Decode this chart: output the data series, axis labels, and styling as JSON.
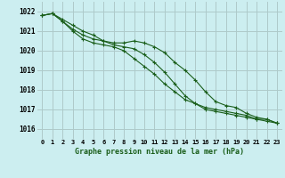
{
  "title": "Graphe pression niveau de la mer (hPa)",
  "background_color": "#cceef0",
  "grid_color": "#aacccc",
  "grid_color_major": "#cc9999",
  "line_color": "#1a5e1a",
  "x_labels": [
    "0",
    "1",
    "2",
    "3",
    "4",
    "5",
    "6",
    "7",
    "8",
    "9",
    "10",
    "11",
    "12",
    "13",
    "14",
    "15",
    "16",
    "17",
    "18",
    "19",
    "20",
    "21",
    "22",
    "23"
  ],
  "ylim": [
    1015.5,
    1022.5
  ],
  "yticks": [
    1016,
    1017,
    1018,
    1019,
    1020,
    1021,
    1022
  ],
  "series": [
    [
      1021.8,
      1021.9,
      1021.6,
      1021.3,
      1021.0,
      1020.8,
      1020.5,
      1020.3,
      1020.2,
      1020.1,
      1019.8,
      1019.4,
      1018.9,
      1018.3,
      1017.7,
      1017.3,
      1017.0,
      1016.9,
      1016.8,
      1016.7,
      1016.6,
      1016.5,
      1016.4,
      1016.3
    ],
    [
      1021.8,
      1021.9,
      1021.5,
      1021.1,
      1020.8,
      1020.6,
      1020.5,
      1020.4,
      1020.4,
      1020.5,
      1020.4,
      1020.2,
      1019.9,
      1019.4,
      1019.0,
      1018.5,
      1017.9,
      1017.4,
      1017.2,
      1017.1,
      1016.8,
      1016.6,
      1016.5,
      1016.3
    ],
    [
      1021.8,
      1021.9,
      1021.5,
      1021.0,
      1020.6,
      1020.4,
      1020.3,
      1020.2,
      1020.0,
      1019.6,
      1019.2,
      1018.8,
      1018.3,
      1017.9,
      1017.5,
      1017.3,
      1017.1,
      1017.0,
      1016.9,
      1016.8,
      1016.7,
      1016.5,
      1016.5,
      1016.3
    ]
  ]
}
